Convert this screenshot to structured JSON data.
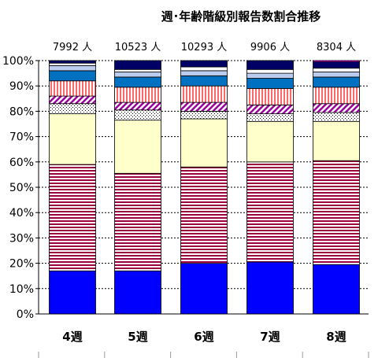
{
  "chart_data": {
    "type": "bar",
    "stacked": true,
    "title": "週･年齢階級別報告数割合推移",
    "categories": [
      "4週",
      "5週",
      "6週",
      "7週",
      "8週"
    ],
    "totals": [
      "7992 人",
      "10523 人",
      "10293 人",
      "9906 人",
      "8304 人"
    ],
    "yticks": [
      "0%",
      "10%",
      "20%",
      "30%",
      "40%",
      "50%",
      "60%",
      "70%",
      "80%",
      "90%",
      "100%"
    ],
    "ylim": [
      0,
      100
    ],
    "grid": true,
    "series": [
      {
        "values": [
          17.0,
          17.0,
          20.0,
          20.5,
          19.5
        ],
        "color": "#0000ff",
        "pattern": "solid-blue"
      },
      {
        "values": [
          42.0,
          38.5,
          38.0,
          39.5,
          41.0
        ],
        "color": "#99003d",
        "pattern": "horizontal-stripes"
      },
      {
        "values": [
          20.0,
          21.0,
          19.0,
          16.0,
          15.5
        ],
        "color": "#ffffcc",
        "pattern": "solid-light-yellow"
      },
      {
        "values": [
          4.0,
          4.0,
          3.0,
          3.0,
          3.5
        ],
        "color": "#000000",
        "pattern": "dots"
      },
      {
        "values": [
          3.0,
          3.0,
          3.5,
          3.5,
          3.5
        ],
        "color": "#990099",
        "pattern": "diagonal-stripes"
      },
      {
        "values": [
          6.0,
          6.0,
          6.5,
          6.5,
          6.5
        ],
        "color": "#ff6666",
        "pattern": "vertical-stripes"
      },
      {
        "values": [
          4.0,
          4.0,
          4.0,
          4.0,
          4.0
        ],
        "color": "#0070c0",
        "pattern": "solid-mid-blue"
      },
      {
        "values": [
          2.0,
          2.0,
          2.0,
          2.0,
          2.0
        ],
        "color": "#bbccee",
        "pattern": "solid-pale-blue"
      },
      {
        "values": [
          1.0,
          1.0,
          1.5,
          1.5,
          1.5
        ],
        "color": "#ffffff",
        "pattern": "solid-white"
      },
      {
        "values": [
          1.0,
          3.5,
          2.5,
          3.5,
          2.5
        ],
        "color": "#000066",
        "pattern": "solid-navy"
      },
      {
        "values": [
          0.0,
          0.0,
          0.0,
          0.0,
          0.5
        ],
        "color": "#ff00ff",
        "pattern": "solid-magenta"
      }
    ]
  }
}
